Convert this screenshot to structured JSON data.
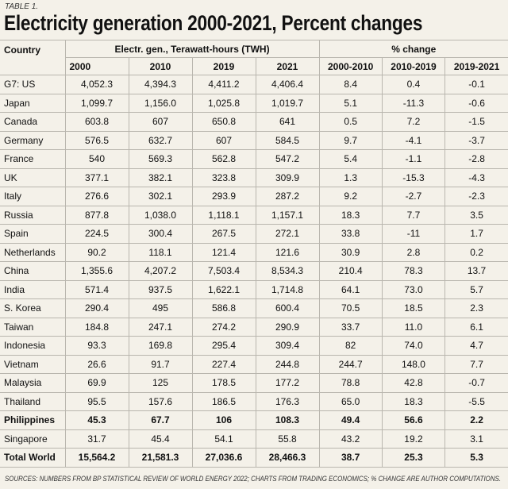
{
  "label": "TABLE 1.",
  "title": "Electricity generation 2000-2021, Percent changes",
  "table": {
    "header": {
      "country": "Country",
      "group_generation": "Electr. gen., Terawatt-hours (TWH)",
      "group_change": "% change",
      "columns": [
        "2000",
        "2010",
        "2019",
        "2021",
        "2000-2010",
        "2010-2019",
        "2019-2021"
      ]
    },
    "rows": [
      [
        "G7: US",
        "4,052.3",
        "4,394.3",
        "4,411.2",
        "4,406.4",
        "8.4",
        "0.4",
        "-0.1"
      ],
      [
        "Japan",
        "1,099.7",
        "1,156.0",
        "1,025.8",
        "1,019.7",
        "5.1",
        "-11.3",
        "-0.6"
      ],
      [
        "Canada",
        "603.8",
        "607",
        "650.8",
        "641",
        "0.5",
        "7.2",
        "-1.5"
      ],
      [
        "Germany",
        "576.5",
        "632.7",
        "607",
        "584.5",
        "9.7",
        "-4.1",
        "-3.7"
      ],
      [
        "France",
        "540",
        "569.3",
        "562.8",
        "547.2",
        "5.4",
        "-1.1",
        "-2.8"
      ],
      [
        "UK",
        "377.1",
        "382.1",
        "323.8",
        "309.9",
        "1.3",
        "-15.3",
        "-4.3"
      ],
      [
        "Italy",
        "276.6",
        "302.1",
        "293.9",
        "287.2",
        "9.2",
        "-2.7",
        "-2.3"
      ],
      [
        "Russia",
        "877.8",
        "1,038.0",
        "1,118.1",
        "1,157.1",
        "18.3",
        "7.7",
        "3.5"
      ],
      [
        "Spain",
        "224.5",
        "300.4",
        "267.5",
        "272.1",
        "33.8",
        "-11",
        "1.7"
      ],
      [
        "Netherlands",
        "90.2",
        "118.1",
        "121.4",
        "121.6",
        "30.9",
        "2.8",
        "0.2"
      ],
      [
        "China",
        "1,355.6",
        "4,207.2",
        "7,503.4",
        "8,534.3",
        "210.4",
        "78.3",
        "13.7"
      ],
      [
        "India",
        "571.4",
        "937.5",
        "1,622.1",
        "1,714.8",
        "64.1",
        "73.0",
        "5.7"
      ],
      [
        "S. Korea",
        "290.4",
        "495",
        "586.8",
        "600.4",
        "70.5",
        "18.5",
        "2.3"
      ],
      [
        "Taiwan",
        "184.8",
        "247.1",
        "274.2",
        "290.9",
        "33.7",
        "11.0",
        "6.1"
      ],
      [
        "Indonesia",
        "93.3",
        "169.8",
        "295.4",
        "309.4",
        "82",
        "74.0",
        "4.7"
      ],
      [
        "Vietnam",
        "26.6",
        "91.7",
        "227.4",
        "244.8",
        "244.7",
        "148.0",
        "7.7"
      ],
      [
        "Malaysia",
        "69.9",
        "125",
        "178.5",
        "177.2",
        "78.8",
        "42.8",
        "-0.7"
      ],
      [
        "Thailand",
        "95.5",
        "157.6",
        "186.5",
        "176.3",
        "65.0",
        "18.3",
        "-5.5"
      ],
      [
        "Philippines",
        "45.3",
        "67.7",
        "106",
        "108.3",
        "49.4",
        "56.6",
        "2.2"
      ],
      [
        "Singapore",
        "31.7",
        "45.4",
        "54.1",
        "55.8",
        "43.2",
        "19.2",
        "3.1"
      ],
      [
        "Total World",
        "15,564.2",
        "21,581.3",
        "27,036.6",
        "28,466.3",
        "38.7",
        "25.3",
        "5.3"
      ]
    ]
  },
  "source": "SOURCES: NUMBERS FROM BP STATISTICAL REVIEW OF WORLD ENERGY 2022; CHARTS FROM TRADING ECONOMICS; % CHANGE ARE AUTHOR COMPUTATIONS."
}
